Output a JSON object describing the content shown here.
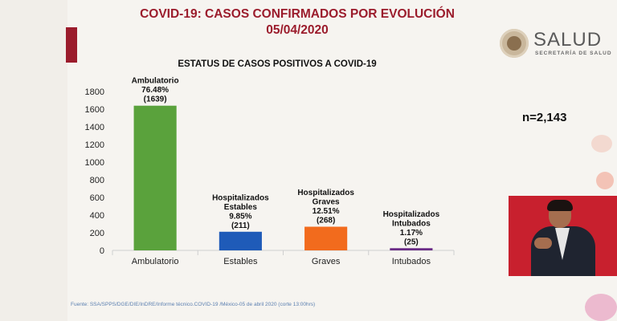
{
  "header": {
    "title_line1": "COVID-19: CASOS CONFIRMADOS POR EVOLUCIÓN",
    "title_line2": "05/04/2020"
  },
  "logo": {
    "name": "SALUD",
    "subtitle": "SECRETARÍA DE SALUD"
  },
  "total_label": "n=2,143",
  "source": "Fuente: SSA/SPPS/DGE/DIE/InDRE/Informe técnico.COVID-19 /México-05 de abril 2020 (corte 13:00hrs)",
  "colors": {
    "title": "#9b1c2c",
    "ambulatorio": "#5aa23c",
    "estables": "#1f5bb8",
    "graves": "#f26b1d",
    "intubados": "#6a2b86"
  },
  "chart_data": {
    "type": "bar",
    "title": "ESTATUS DE CASOS POSITIVOS A COVID-19",
    "categories": [
      "Ambulatorio",
      "Estables",
      "Graves",
      "Intubados"
    ],
    "values": [
      1639,
      211,
      268,
      25
    ],
    "ylim": [
      0,
      1800
    ],
    "yticks": [
      "0",
      "200",
      "400",
      "600",
      "800",
      "1000",
      "1200",
      "1400",
      "1600",
      "1800"
    ],
    "xlabel": "",
    "ylabel": "",
    "bar_labels": [
      [
        "Ambulatorio",
        "76.48%",
        "(1639)"
      ],
      [
        "Hospitalizados",
        "Estables",
        "9.85%",
        "(211)"
      ],
      [
        "Hospitalizados",
        "Graves",
        "12.51%",
        "(268)"
      ],
      [
        "Hospitalizados",
        "Intubados",
        "1.17%",
        "(25)"
      ]
    ]
  }
}
